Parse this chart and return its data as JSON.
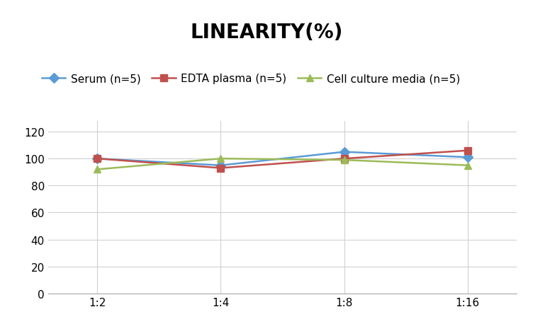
{
  "title": "LINEARITY(%)",
  "x_labels": [
    "1:2",
    "1:4",
    "1:8",
    "1:16"
  ],
  "series": [
    {
      "label": "Serum (n=5)",
      "values": [
        100,
        95,
        105,
        101
      ],
      "color": "#5B9BD5",
      "marker": "D",
      "markersize": 7
    },
    {
      "label": "EDTA plasma (n=5)",
      "values": [
        100,
        93,
        100,
        106
      ],
      "color": "#C0504D",
      "marker": "s",
      "markersize": 7
    },
    {
      "label": "Cell culture media (n=5)",
      "values": [
        92,
        100,
        99,
        95
      ],
      "color": "#9BBB59",
      "marker": "^",
      "markersize": 7
    }
  ],
  "ylim": [
    0,
    128
  ],
  "yticks": [
    0,
    20,
    40,
    60,
    80,
    100,
    120
  ],
  "grid_color": "#D0D0D0",
  "background_color": "#FFFFFF",
  "title_fontsize": 20,
  "legend_fontsize": 11,
  "tick_fontsize": 11,
  "linewidth": 1.8
}
